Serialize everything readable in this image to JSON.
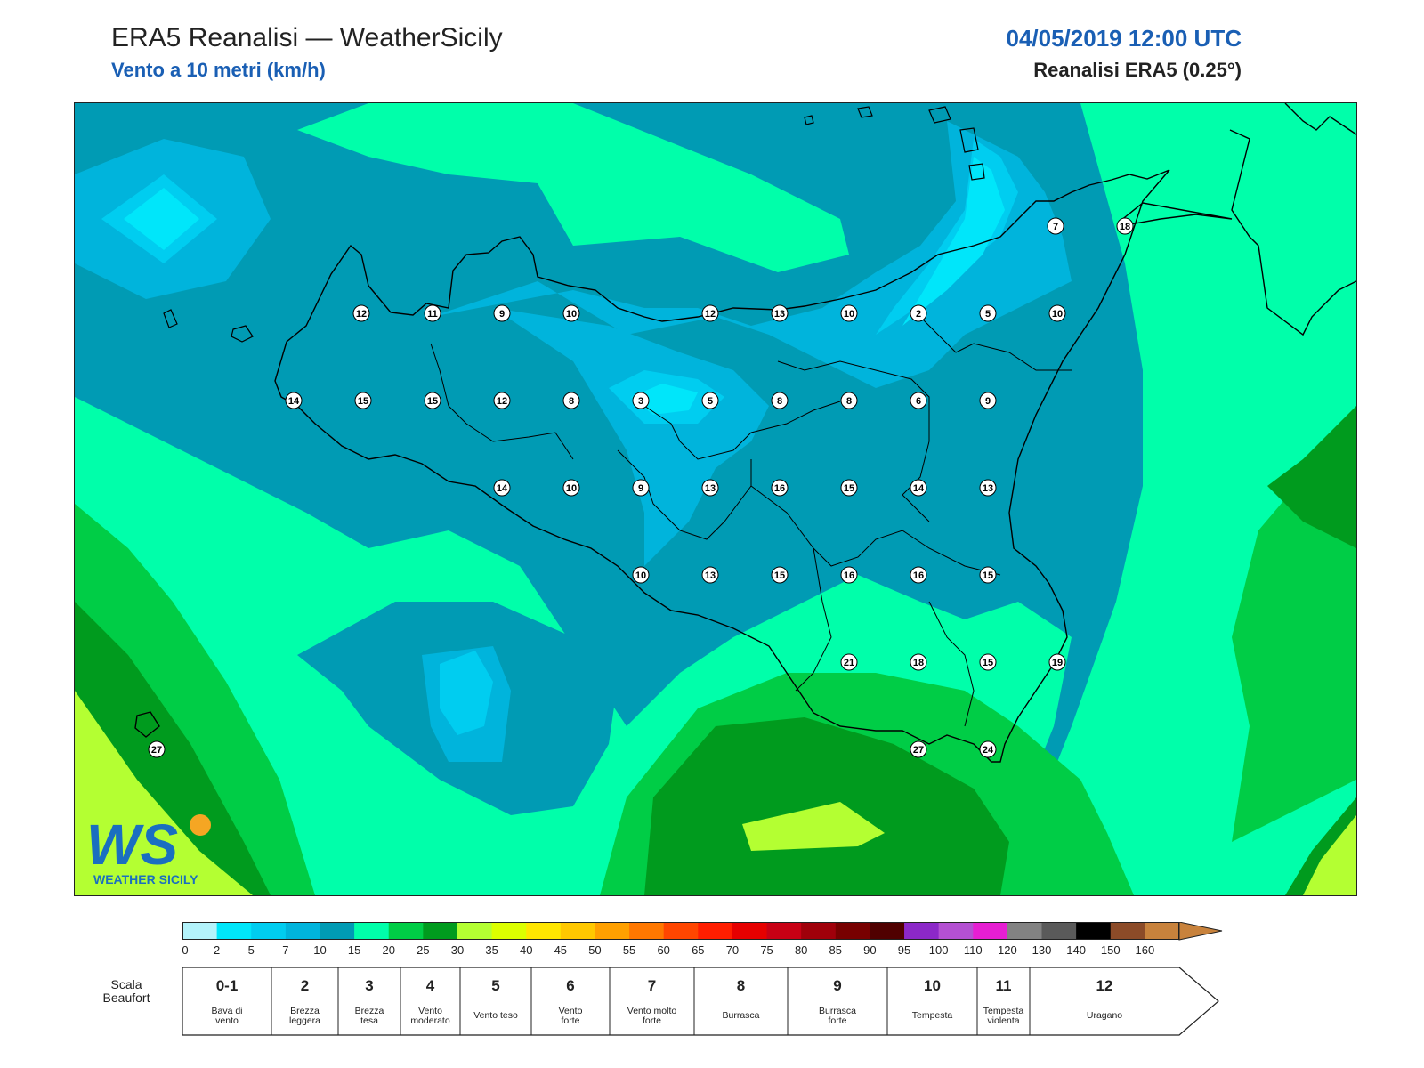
{
  "header": {
    "title": "ERA5 Reanalisi — WeatherSicily",
    "subtitle": "Vento a 10 metri (km/h)",
    "datetime": "04/05/2019 12:00 UTC",
    "source": "Reanalisi ERA5 (0.25°)"
  },
  "logo": {
    "mark": "WS",
    "text": "WEATHER SICILY",
    "icon": "weather-sicily-logo"
  },
  "colors": {
    "c0_2": "#b3f3fb",
    "c2_5": "#00e6fa",
    "c5_7": "#00cdf0",
    "c7_10": "#00b4dc",
    "c10_15": "#009bb4",
    "c15_20": "#00ffaa",
    "c20_25": "#00cd46",
    "c25_30": "#009b1e",
    "c30_35": "#b4ff32",
    "coast": "#000000"
  },
  "colorbar": {
    "ticks": [
      "0",
      "2",
      "5",
      "7",
      "10",
      "15",
      "20",
      "25",
      "30",
      "35",
      "40",
      "45",
      "50",
      "55",
      "60",
      "65",
      "70",
      "75",
      "80",
      "85",
      "90",
      "95",
      "100",
      "110",
      "120",
      "130",
      "140",
      "150",
      "160"
    ],
    "colors": [
      "#b3f3fb",
      "#00e6fa",
      "#00cdf0",
      "#00b4dc",
      "#009bb4",
      "#00ffaa",
      "#00cd46",
      "#009b1e",
      "#b4ff32",
      "#dcff00",
      "#ffe600",
      "#ffc800",
      "#ffa000",
      "#ff7800",
      "#ff4600",
      "#ff1e00",
      "#e60000",
      "#c80014",
      "#a0000a",
      "#780000",
      "#500000",
      "#8c28c8",
      "#b450d2",
      "#e61ed2",
      "#828282",
      "#5a5a5a",
      "#000000",
      "#8c4b28",
      "#c8823c"
    ]
  },
  "beaufort": {
    "label_line1": "Scala",
    "label_line2": "Beaufort",
    "cells": [
      {
        "num": "0-1",
        "desc1": "Bava di",
        "desc2": "vento"
      },
      {
        "num": "2",
        "desc1": "Brezza",
        "desc2": "leggera"
      },
      {
        "num": "3",
        "desc1": "Brezza",
        "desc2": "tesa"
      },
      {
        "num": "4",
        "desc1": "Vento",
        "desc2": "moderato"
      },
      {
        "num": "5",
        "desc1": "Vento teso",
        "desc2": ""
      },
      {
        "num": "6",
        "desc1": "Vento",
        "desc2": "forte"
      },
      {
        "num": "7",
        "desc1": "Vento molto",
        "desc2": "forte"
      },
      {
        "num": "8",
        "desc1": "Burrasca",
        "desc2": ""
      },
      {
        "num": "9",
        "desc1": "Burrasca",
        "desc2": "forte"
      },
      {
        "num": "10",
        "desc1": "Tempesta",
        "desc2": ""
      },
      {
        "num": "11",
        "desc1": "Tempesta",
        "desc2": "violenta"
      },
      {
        "num": "12",
        "desc1": "Uragano",
        "desc2": ""
      }
    ]
  },
  "stations": [
    {
      "v": "7",
      "c": "b"
    },
    {
      "v": "18",
      "c": "b"
    },
    {
      "v": "12",
      "c": "a"
    },
    {
      "v": "11",
      "c": "a"
    },
    {
      "v": "9",
      "c": "a"
    },
    {
      "v": "10",
      "c": "a"
    },
    {
      "v": "12",
      "c": "a"
    },
    {
      "v": "13",
      "c": "a"
    },
    {
      "v": "10",
      "c": "a"
    },
    {
      "v": "2",
      "c": "a"
    },
    {
      "v": "5",
      "c": "a"
    },
    {
      "v": "10",
      "c": "a"
    },
    {
      "v": "14",
      "c": "a"
    },
    {
      "v": "15",
      "c": "a"
    },
    {
      "v": "15",
      "c": "a"
    },
    {
      "v": "12",
      "c": "a"
    },
    {
      "v": "8",
      "c": "a"
    },
    {
      "v": "3",
      "c": "a"
    },
    {
      "v": "5",
      "c": "a"
    },
    {
      "v": "8",
      "c": "a"
    },
    {
      "v": "8",
      "c": "a"
    },
    {
      "v": "6",
      "c": "a"
    },
    {
      "v": "9",
      "c": "a"
    },
    {
      "v": "14",
      "c": "a"
    },
    {
      "v": "10",
      "c": "a"
    },
    {
      "v": "9",
      "c": "a"
    },
    {
      "v": "13",
      "c": "a"
    },
    {
      "v": "16",
      "c": "a"
    },
    {
      "v": "15",
      "c": "a"
    },
    {
      "v": "14",
      "c": "a"
    },
    {
      "v": "13",
      "c": "a"
    },
    {
      "v": "10",
      "c": "a"
    },
    {
      "v": "13",
      "c": "a"
    },
    {
      "v": "15",
      "c": "a"
    },
    {
      "v": "16",
      "c": "a"
    },
    {
      "v": "16",
      "c": "a"
    },
    {
      "v": "15",
      "c": "a"
    },
    {
      "v": "21",
      "c": "a"
    },
    {
      "v": "18",
      "c": "a"
    },
    {
      "v": "15",
      "c": "a"
    },
    {
      "v": "19",
      "c": "a"
    },
    {
      "v": "27",
      "c": "a"
    },
    {
      "v": "27",
      "c": "a"
    },
    {
      "v": "24",
      "c": "a"
    }
  ]
}
